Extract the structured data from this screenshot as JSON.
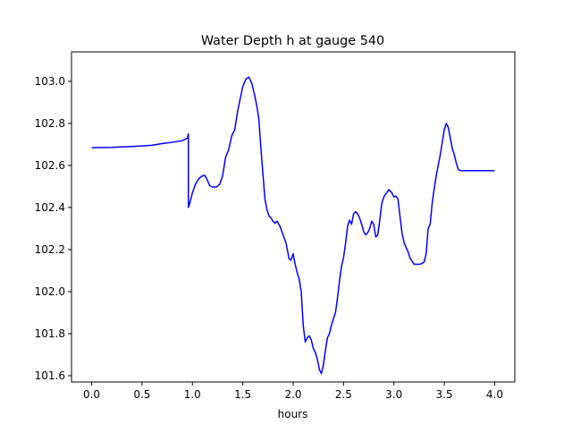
{
  "chart_data": {
    "type": "line",
    "title": "Water Depth h at gauge 540",
    "xlabel": "hours",
    "ylabel": "",
    "xlim": [
      -0.2,
      4.2
    ],
    "ylim": [
      101.57,
      103.14
    ],
    "x_ticks": [
      0.0,
      0.5,
      1.0,
      1.5,
      2.0,
      2.5,
      3.0,
      3.5,
      4.0
    ],
    "x_tick_labels": [
      "0.0",
      "0.5",
      "1.0",
      "1.5",
      "2.0",
      "2.5",
      "3.0",
      "3.5",
      "4.0"
    ],
    "y_ticks": [
      101.6,
      101.8,
      102.0,
      102.2,
      102.4,
      102.6,
      102.8,
      103.0
    ],
    "y_tick_labels": [
      "101.6",
      "101.8",
      "102.0",
      "102.2",
      "102.4",
      "102.6",
      "102.8",
      "103.0"
    ],
    "grid": false,
    "legend": "none",
    "series": [
      {
        "color": "#0000ff",
        "x": [
          0.0,
          0.2,
          0.4,
          0.6,
          0.65,
          0.7,
          0.8,
          0.9,
          0.95,
          0.96,
          0.96,
          0.98,
          1.0,
          1.03,
          1.06,
          1.09,
          1.12,
          1.14,
          1.17,
          1.2,
          1.24,
          1.27,
          1.3,
          1.33,
          1.36,
          1.39,
          1.42,
          1.45,
          1.48,
          1.5,
          1.53,
          1.56,
          1.59,
          1.62,
          1.64,
          1.66,
          1.68,
          1.7,
          1.72,
          1.74,
          1.76,
          1.78,
          1.8,
          1.82,
          1.84,
          1.87,
          1.9,
          1.93,
          1.96,
          1.98,
          2.0,
          2.02,
          2.04,
          2.06,
          2.08,
          2.1,
          2.12,
          2.14,
          2.16,
          2.18,
          2.2,
          2.22,
          2.24,
          2.26,
          2.28,
          2.3,
          2.32,
          2.34,
          2.36,
          2.38,
          2.4,
          2.42,
          2.44,
          2.46,
          2.48,
          2.5,
          2.52,
          2.54,
          2.56,
          2.58,
          2.6,
          2.62,
          2.64,
          2.66,
          2.68,
          2.7,
          2.72,
          2.74,
          2.76,
          2.78,
          2.8,
          2.82,
          2.84,
          2.86,
          2.88,
          2.9,
          2.92,
          2.95,
          2.98,
          3.0,
          3.02,
          3.04,
          3.06,
          3.08,
          3.1,
          3.12,
          3.14,
          3.16,
          3.18,
          3.2,
          3.23,
          3.26,
          3.28,
          3.3,
          3.32,
          3.34,
          3.36,
          3.38,
          3.4,
          3.42,
          3.44,
          3.46,
          3.48,
          3.5,
          3.52,
          3.54,
          3.56,
          3.58,
          3.6,
          3.62,
          3.64,
          3.66,
          3.68,
          3.7,
          3.72,
          3.74,
          3.76,
          3.78,
          3.8,
          3.82,
          3.84,
          3.86,
          3.88,
          3.9,
          3.92,
          3.94,
          3.96,
          3.98,
          4.0
        ],
        "y": [
          102.685,
          102.686,
          102.69,
          102.696,
          102.7,
          102.704,
          102.71,
          102.718,
          102.73,
          102.75,
          102.4,
          102.43,
          102.47,
          102.51,
          102.535,
          102.548,
          102.553,
          102.54,
          102.505,
          102.497,
          102.498,
          102.51,
          102.55,
          102.64,
          102.675,
          102.74,
          102.77,
          102.86,
          102.93,
          102.975,
          103.01,
          103.02,
          102.99,
          102.93,
          102.88,
          102.82,
          102.68,
          102.56,
          102.44,
          102.39,
          102.36,
          102.35,
          102.335,
          102.325,
          102.335,
          102.31,
          102.27,
          102.23,
          102.155,
          102.15,
          102.18,
          102.13,
          102.09,
          102.06,
          102.0,
          101.84,
          101.76,
          101.78,
          101.79,
          101.77,
          101.73,
          101.71,
          101.68,
          101.63,
          101.61,
          101.65,
          101.72,
          101.78,
          101.8,
          101.84,
          101.87,
          101.9,
          101.97,
          102.05,
          102.12,
          102.16,
          102.23,
          102.31,
          102.34,
          102.32,
          102.37,
          102.38,
          102.37,
          102.35,
          102.32,
          102.285,
          102.27,
          102.28,
          102.3,
          102.335,
          102.32,
          102.26,
          102.27,
          102.34,
          102.42,
          102.45,
          102.465,
          102.485,
          102.47,
          102.45,
          102.455,
          102.44,
          102.36,
          102.28,
          102.235,
          102.21,
          102.19,
          102.16,
          102.145,
          102.13,
          102.13,
          102.13,
          102.135,
          102.14,
          102.18,
          102.3,
          102.32,
          102.42,
          102.49,
          102.55,
          102.6,
          102.65,
          102.71,
          102.77,
          102.8,
          102.78,
          102.73,
          102.68,
          102.65,
          102.61,
          102.58,
          102.575,
          102.575,
          102.575,
          102.575,
          102.575,
          102.575,
          102.575,
          102.575,
          102.575,
          102.575,
          102.575,
          102.575,
          102.575,
          102.575,
          102.575,
          102.575,
          102.575,
          102.575
        ]
      }
    ]
  }
}
